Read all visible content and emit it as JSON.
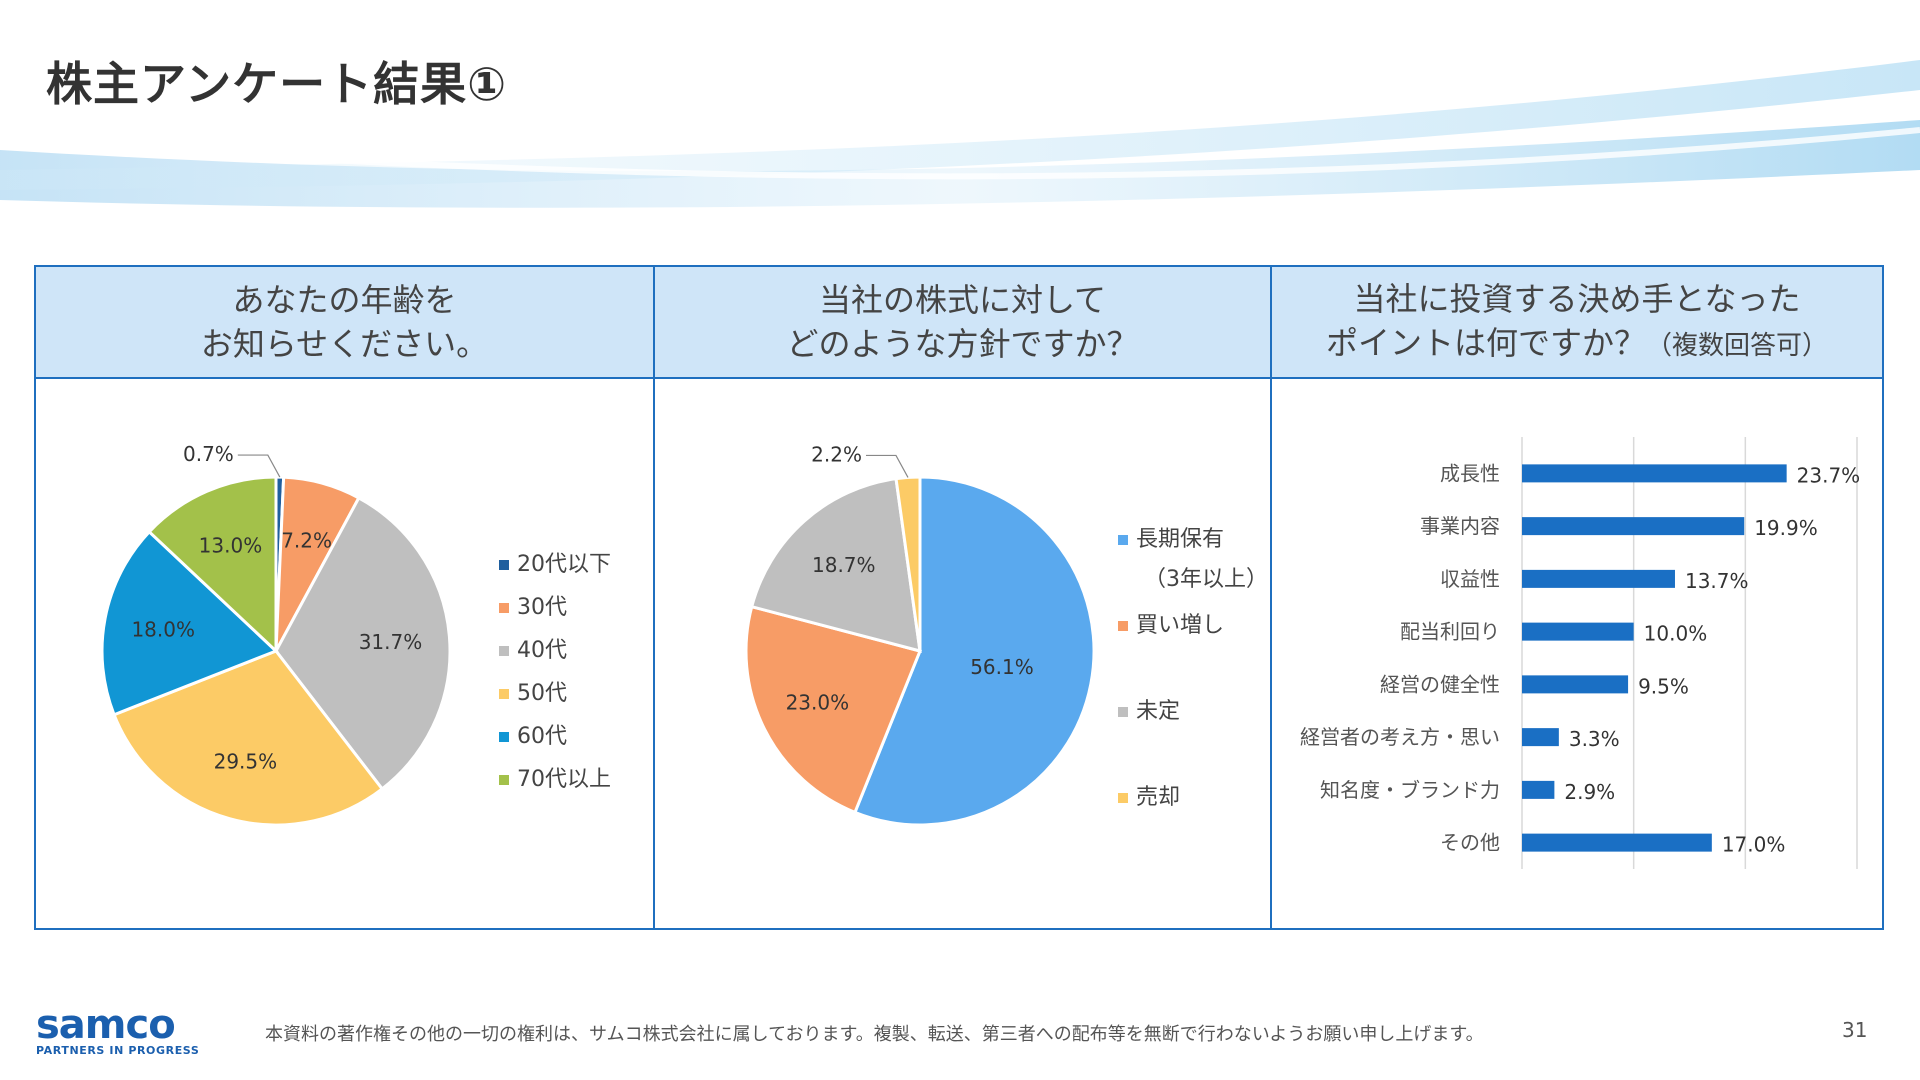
{
  "title": "株主アンケート結果①",
  "panels": [
    {
      "heading_line1": "あなたの年齢を",
      "heading_line2": "お知らせください。",
      "heading_suffix": ""
    },
    {
      "heading_line1": "当社の株式に対して",
      "heading_line2": "どのような方針ですか？",
      "heading_suffix": ""
    },
    {
      "heading_line1": "当社に投資する決め手となった",
      "heading_line2": "ポイントは何ですか？",
      "heading_suffix": "（複数回答可）"
    }
  ],
  "chart_data": [
    {
      "type": "pie",
      "title": "あなたの年齢をお知らせください。",
      "categories": [
        "20代以下",
        "30代",
        "40代",
        "50代",
        "60代",
        "70代以上"
      ],
      "values": [
        0.7,
        7.2,
        31.7,
        29.5,
        18.0,
        13.0
      ],
      "labels": [
        "0.7%",
        "7.2%",
        "31.7%",
        "29.5%",
        "18.0%",
        "13.0%"
      ],
      "colors": [
        "#1f5f9e",
        "#f79c66",
        "#bfbfbf",
        "#fccb66",
        "#1196d4",
        "#a3c14a"
      ],
      "legend": "right"
    },
    {
      "type": "pie",
      "title": "当社の株式に対してどのような方針ですか？",
      "categories": [
        "長期保有（3年以上）",
        "買い増し",
        "未定",
        "売却"
      ],
      "legend_lines": [
        [
          "長期保有",
          "（3年以上）"
        ],
        [
          "買い増し"
        ],
        [
          "未定"
        ],
        [
          "売却"
        ]
      ],
      "values": [
        56.1,
        23.0,
        18.7,
        2.2
      ],
      "labels": [
        "56.1%",
        "23.0%",
        "18.7%",
        "2.2%"
      ],
      "colors": [
        "#5aa9ee",
        "#f79c66",
        "#bfbfbf",
        "#fccb66"
      ],
      "legend": "right"
    },
    {
      "type": "bar",
      "orientation": "horizontal",
      "title": "当社に投資する決め手となったポイントは何ですか？（複数回答可）",
      "categories": [
        "成長性",
        "事業内容",
        "収益性",
        "配当利回り",
        "経営の健全性",
        "経営者の考え方・思い",
        "知名度・ブランド力",
        "その他"
      ],
      "values": [
        23.7,
        19.9,
        13.7,
        10.0,
        9.5,
        3.3,
        2.9,
        17.0
      ],
      "labels": [
        "23.7%",
        "19.9%",
        "13.7%",
        "10.0%",
        "9.5%",
        "3.3%",
        "2.9%",
        "17.0%"
      ],
      "xlim": [
        0,
        30
      ],
      "grid": true,
      "color": "#1a6fc4"
    }
  ],
  "footer": {
    "copyright": "本資料の著作権その他の一切の権利は、サムコ株式会社に属しております。複製、転送、第三者への配布等を無断で行わないようお願い申し上げます。",
    "page_number": "31",
    "logo_text": "samco",
    "logo_tagline": "PARTNERS IN PROGRESS"
  }
}
